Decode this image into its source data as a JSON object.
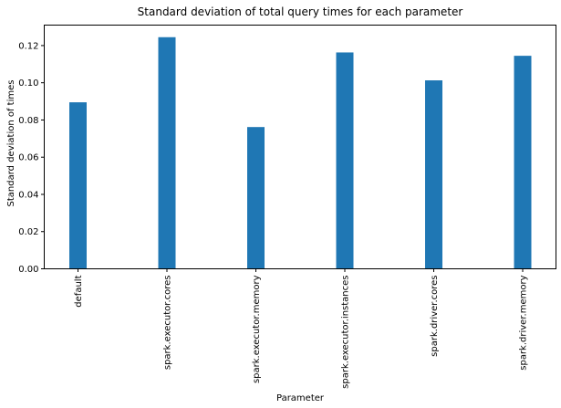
{
  "chart_data": {
    "type": "bar",
    "title": "Standard deviation of total query times for each parameter",
    "xlabel": "Parameter",
    "ylabel": "Standard deviation of times",
    "categories": [
      "default",
      "spark.executor.cores",
      "spark.executor.memory",
      "spark.executor.instances",
      "spark.driver.cores",
      "spark.driver.memory"
    ],
    "values": [
      0.0895,
      0.1245,
      0.0762,
      0.1163,
      0.1013,
      0.1145
    ],
    "ylim": [
      0,
      0.131
    ],
    "yticks": [
      0.0,
      0.02,
      0.04,
      0.06,
      0.08,
      0.1,
      0.12
    ],
    "ytick_labels": [
      "0.00",
      "0.02",
      "0.04",
      "0.06",
      "0.08",
      "0.10",
      "0.12"
    ],
    "bar_color": "#1f77b4",
    "grid": false,
    "legend": "none"
  }
}
